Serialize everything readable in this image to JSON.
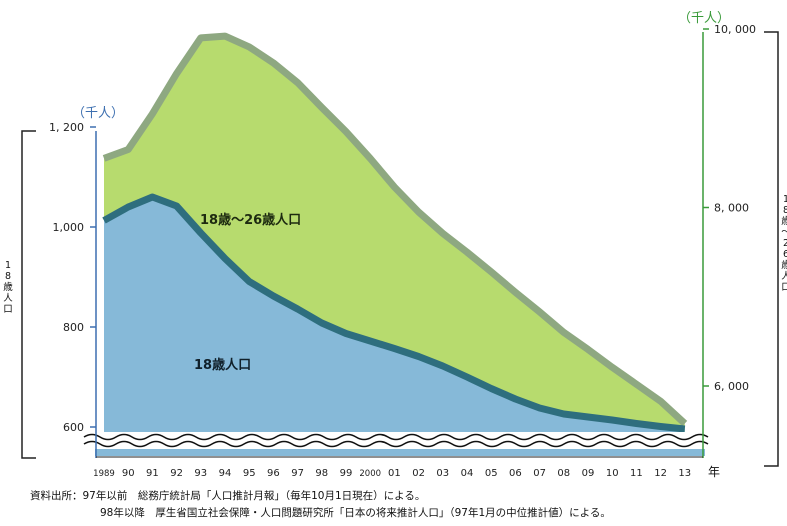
{
  "chart_data": {
    "type": "area",
    "title": "",
    "left_axis": {
      "unit": "（千人）",
      "label": "18歳人口",
      "ticks": [
        600,
        800,
        "1,000",
        "1, 200"
      ],
      "ylim": [
        580,
        1200
      ]
    },
    "right_axis": {
      "unit": "（千人）",
      "label": "18歳〜26歳人口",
      "ticks": [
        "6, 000",
        "8, 000",
        "10, 000"
      ],
      "ylim": [
        5000,
        10000
      ]
    },
    "x_label": "年",
    "categories": [
      "1989",
      "90",
      "91",
      "92",
      "93",
      "94",
      "95",
      "96",
      "97",
      "98",
      "99",
      "2000",
      "01",
      "02",
      "03",
      "04",
      "05",
      "06",
      "07",
      "08",
      "09",
      "10",
      "11",
      "12",
      "13"
    ],
    "series": [
      {
        "name": "18歳人口",
        "axis": "left",
        "color": "#86b9d8",
        "line_color": "#2e6e7e",
        "values": [
          1013,
          1040,
          1060,
          1042,
          988,
          937,
          891,
          862,
          836,
          808,
          787,
          772,
          757,
          741,
          722,
          700,
          677,
          656,
          638,
          626,
          620,
          614,
          607,
          601,
          596
        ]
      },
      {
        "name": "18歳〜26歳人口",
        "axis": "right",
        "color": "#b7db6e",
        "line_color": "#8ea881",
        "values": [
          8550,
          8650,
          9050,
          9500,
          9900,
          9920,
          9800,
          9620,
          9400,
          9120,
          8850,
          8550,
          8230,
          7950,
          7710,
          7500,
          7280,
          7050,
          6830,
          6600,
          6410,
          6210,
          6020,
          5830,
          5580
        ]
      }
    ],
    "source": {
      "line1": "資料出所：97年以前　総務庁統計局「人口推計月報」（毎年10月1日現在）による。",
      "line2": "98年以降　厚生省国立社会保障・人口問題研究所「日本の将来推計人口」（97年1月の中位推計値）による。"
    }
  }
}
